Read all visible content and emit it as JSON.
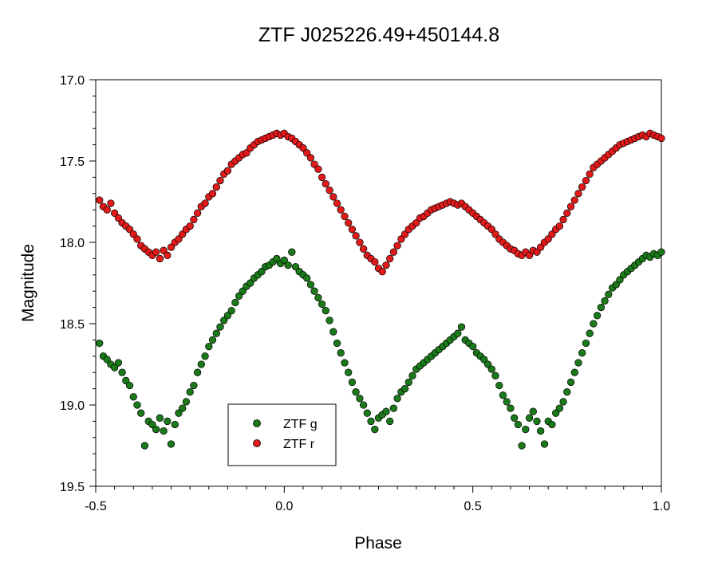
{
  "chart_data": {
    "type": "scatter",
    "title": "ZTF J025226.49+450144.8",
    "xlabel": "Phase",
    "ylabel": "Magnitude",
    "xlim": [
      -0.5,
      1.0
    ],
    "ylim": [
      17.0,
      19.5
    ],
    "y_inverted": true,
    "x_ticks": [
      "-0.5",
      "0.0",
      "0.5",
      "1.0"
    ],
    "y_ticks": [
      "17.0",
      "17.5",
      "18.0",
      "18.5",
      "19.0",
      "19.5"
    ],
    "grid": false,
    "legend_position": "bottom-left",
    "series": [
      {
        "name": "ZTF g",
        "color": "#1a7a1a",
        "points": [
          [
            -0.49,
            18.62
          ],
          [
            -0.48,
            18.7
          ],
          [
            -0.47,
            18.72
          ],
          [
            -0.46,
            18.75
          ],
          [
            -0.45,
            18.77
          ],
          [
            -0.44,
            18.74
          ],
          [
            -0.43,
            18.8
          ],
          [
            -0.42,
            18.85
          ],
          [
            -0.41,
            18.88
          ],
          [
            -0.4,
            18.95
          ],
          [
            -0.39,
            19.0
          ],
          [
            -0.38,
            19.05
          ],
          [
            -0.37,
            19.25
          ],
          [
            -0.36,
            19.1
          ],
          [
            -0.35,
            19.12
          ],
          [
            -0.34,
            19.15
          ],
          [
            -0.33,
            19.08
          ],
          [
            -0.32,
            19.16
          ],
          [
            -0.31,
            19.1
          ],
          [
            -0.3,
            19.24
          ],
          [
            -0.29,
            19.12
          ],
          [
            -0.28,
            19.05
          ],
          [
            -0.27,
            19.02
          ],
          [
            -0.26,
            18.98
          ],
          [
            -0.25,
            18.92
          ],
          [
            -0.24,
            18.88
          ],
          [
            -0.23,
            18.8
          ],
          [
            -0.22,
            18.75
          ],
          [
            -0.21,
            18.7
          ],
          [
            -0.2,
            18.64
          ],
          [
            -0.19,
            18.6
          ],
          [
            -0.18,
            18.56
          ],
          [
            -0.17,
            18.52
          ],
          [
            -0.16,
            18.48
          ],
          [
            -0.15,
            18.45
          ],
          [
            -0.14,
            18.42
          ],
          [
            -0.13,
            18.37
          ],
          [
            -0.12,
            18.33
          ],
          [
            -0.11,
            18.3
          ],
          [
            -0.1,
            18.27
          ],
          [
            -0.09,
            18.25
          ],
          [
            -0.08,
            18.22
          ],
          [
            -0.07,
            18.2
          ],
          [
            -0.06,
            18.18
          ],
          [
            -0.05,
            18.15
          ],
          [
            -0.04,
            18.14
          ],
          [
            -0.03,
            18.12
          ],
          [
            -0.02,
            18.1
          ],
          [
            -0.01,
            18.13
          ],
          [
            0.0,
            18.11
          ],
          [
            0.01,
            18.14
          ],
          [
            0.02,
            18.06
          ],
          [
            0.03,
            18.15
          ],
          [
            0.04,
            18.18
          ],
          [
            0.05,
            18.2
          ],
          [
            0.06,
            18.22
          ],
          [
            0.07,
            18.26
          ],
          [
            0.08,
            18.3
          ],
          [
            0.09,
            18.34
          ],
          [
            0.1,
            18.38
          ],
          [
            0.11,
            18.42
          ],
          [
            0.12,
            18.48
          ],
          [
            0.13,
            18.55
          ],
          [
            0.14,
            18.62
          ],
          [
            0.15,
            18.68
          ],
          [
            0.16,
            18.74
          ],
          [
            0.17,
            18.8
          ],
          [
            0.18,
            18.86
          ],
          [
            0.19,
            18.92
          ],
          [
            0.2,
            18.96
          ],
          [
            0.21,
            19.0
          ],
          [
            0.22,
            19.05
          ],
          [
            0.23,
            19.1
          ],
          [
            0.24,
            19.15
          ],
          [
            0.25,
            19.08
          ],
          [
            0.26,
            19.06
          ],
          [
            0.27,
            19.04
          ],
          [
            0.28,
            19.1
          ],
          [
            0.29,
            19.02
          ],
          [
            0.3,
            18.96
          ],
          [
            0.31,
            18.92
          ],
          [
            0.32,
            18.9
          ],
          [
            0.33,
            18.86
          ],
          [
            0.34,
            18.82
          ],
          [
            0.35,
            18.78
          ],
          [
            0.36,
            18.76
          ],
          [
            0.37,
            18.74
          ],
          [
            0.38,
            18.72
          ],
          [
            0.39,
            18.7
          ],
          [
            0.4,
            18.68
          ],
          [
            0.41,
            18.66
          ],
          [
            0.42,
            18.64
          ],
          [
            0.43,
            18.62
          ],
          [
            0.44,
            18.6
          ],
          [
            0.45,
            18.58
          ],
          [
            0.46,
            18.56
          ],
          [
            0.47,
            18.52
          ],
          [
            0.48,
            18.6
          ],
          [
            0.49,
            18.62
          ],
          [
            0.5,
            18.64
          ],
          [
            0.51,
            18.68
          ],
          [
            0.52,
            18.7
          ],
          [
            0.53,
            18.72
          ],
          [
            0.54,
            18.75
          ],
          [
            0.55,
            18.78
          ],
          [
            0.56,
            18.82
          ],
          [
            0.57,
            18.88
          ],
          [
            0.58,
            18.94
          ],
          [
            0.59,
            18.98
          ],
          [
            0.6,
            19.02
          ],
          [
            0.61,
            19.08
          ],
          [
            0.62,
            19.12
          ],
          [
            0.63,
            19.25
          ],
          [
            0.64,
            19.15
          ],
          [
            0.65,
            19.08
          ],
          [
            0.66,
            19.04
          ],
          [
            0.67,
            19.1
          ],
          [
            0.68,
            19.16
          ],
          [
            0.69,
            19.24
          ],
          [
            0.7,
            19.1
          ],
          [
            0.71,
            19.12
          ],
          [
            0.72,
            19.05
          ],
          [
            0.73,
            19.02
          ],
          [
            0.74,
            18.98
          ],
          [
            0.75,
            18.92
          ],
          [
            0.76,
            18.86
          ],
          [
            0.77,
            18.8
          ],
          [
            0.78,
            18.74
          ],
          [
            0.79,
            18.68
          ],
          [
            0.8,
            18.62
          ],
          [
            0.81,
            18.56
          ],
          [
            0.82,
            18.5
          ],
          [
            0.83,
            18.45
          ],
          [
            0.84,
            18.4
          ],
          [
            0.85,
            18.36
          ],
          [
            0.86,
            18.32
          ],
          [
            0.87,
            18.28
          ],
          [
            0.88,
            18.26
          ],
          [
            0.89,
            18.23
          ],
          [
            0.9,
            18.2
          ],
          [
            0.91,
            18.18
          ],
          [
            0.92,
            18.16
          ],
          [
            0.93,
            18.14
          ],
          [
            0.94,
            18.12
          ],
          [
            0.95,
            18.1
          ],
          [
            0.96,
            18.08
          ],
          [
            0.97,
            18.09
          ],
          [
            0.98,
            18.07
          ],
          [
            0.99,
            18.08
          ],
          [
            1.0,
            18.06
          ]
        ]
      },
      {
        "name": "ZTF r",
        "color": "#e31a1a",
        "points": [
          [
            -0.49,
            17.74
          ],
          [
            -0.48,
            17.78
          ],
          [
            -0.47,
            17.8
          ],
          [
            -0.46,
            17.76
          ],
          [
            -0.45,
            17.82
          ],
          [
            -0.44,
            17.85
          ],
          [
            -0.43,
            17.88
          ],
          [
            -0.42,
            17.9
          ],
          [
            -0.41,
            17.92
          ],
          [
            -0.4,
            17.95
          ],
          [
            -0.39,
            17.98
          ],
          [
            -0.38,
            18.02
          ],
          [
            -0.37,
            18.04
          ],
          [
            -0.36,
            18.06
          ],
          [
            -0.35,
            18.08
          ],
          [
            -0.34,
            18.06
          ],
          [
            -0.33,
            18.1
          ],
          [
            -0.32,
            18.05
          ],
          [
            -0.31,
            18.08
          ],
          [
            -0.3,
            18.03
          ],
          [
            -0.29,
            18.0
          ],
          [
            -0.28,
            17.98
          ],
          [
            -0.27,
            17.95
          ],
          [
            -0.26,
            17.92
          ],
          [
            -0.25,
            17.9
          ],
          [
            -0.24,
            17.86
          ],
          [
            -0.23,
            17.82
          ],
          [
            -0.22,
            17.78
          ],
          [
            -0.21,
            17.76
          ],
          [
            -0.2,
            17.72
          ],
          [
            -0.19,
            17.7
          ],
          [
            -0.18,
            17.66
          ],
          [
            -0.17,
            17.62
          ],
          [
            -0.16,
            17.58
          ],
          [
            -0.15,
            17.56
          ],
          [
            -0.14,
            17.52
          ],
          [
            -0.13,
            17.5
          ],
          [
            -0.12,
            17.48
          ],
          [
            -0.11,
            17.46
          ],
          [
            -0.1,
            17.45
          ],
          [
            -0.09,
            17.42
          ],
          [
            -0.08,
            17.4
          ],
          [
            -0.07,
            17.38
          ],
          [
            -0.06,
            17.37
          ],
          [
            -0.05,
            17.36
          ],
          [
            -0.04,
            17.35
          ],
          [
            -0.03,
            17.34
          ],
          [
            -0.02,
            17.33
          ],
          [
            -0.01,
            17.34
          ],
          [
            0.0,
            17.33
          ],
          [
            0.01,
            17.35
          ],
          [
            0.02,
            17.36
          ],
          [
            0.03,
            17.38
          ],
          [
            0.04,
            17.4
          ],
          [
            0.05,
            17.42
          ],
          [
            0.06,
            17.45
          ],
          [
            0.07,
            17.48
          ],
          [
            0.08,
            17.52
          ],
          [
            0.09,
            17.55
          ],
          [
            0.1,
            17.6
          ],
          [
            0.11,
            17.64
          ],
          [
            0.12,
            17.68
          ],
          [
            0.13,
            17.72
          ],
          [
            0.14,
            17.76
          ],
          [
            0.15,
            17.8
          ],
          [
            0.16,
            17.84
          ],
          [
            0.17,
            17.88
          ],
          [
            0.18,
            17.92
          ],
          [
            0.19,
            17.96
          ],
          [
            0.2,
            18.0
          ],
          [
            0.21,
            18.04
          ],
          [
            0.22,
            18.08
          ],
          [
            0.23,
            18.1
          ],
          [
            0.24,
            18.12
          ],
          [
            0.25,
            18.16
          ],
          [
            0.26,
            18.18
          ],
          [
            0.27,
            18.14
          ],
          [
            0.28,
            18.1
          ],
          [
            0.29,
            18.06
          ],
          [
            0.3,
            18.02
          ],
          [
            0.31,
            17.98
          ],
          [
            0.32,
            17.95
          ],
          [
            0.33,
            17.92
          ],
          [
            0.34,
            17.9
          ],
          [
            0.35,
            17.88
          ],
          [
            0.36,
            17.85
          ],
          [
            0.37,
            17.84
          ],
          [
            0.38,
            17.82
          ],
          [
            0.39,
            17.8
          ],
          [
            0.4,
            17.79
          ],
          [
            0.41,
            17.78
          ],
          [
            0.42,
            17.77
          ],
          [
            0.43,
            17.76
          ],
          [
            0.44,
            17.75
          ],
          [
            0.45,
            17.76
          ],
          [
            0.46,
            17.77
          ],
          [
            0.47,
            17.76
          ],
          [
            0.48,
            17.78
          ],
          [
            0.49,
            17.8
          ],
          [
            0.5,
            17.82
          ],
          [
            0.51,
            17.84
          ],
          [
            0.52,
            17.86
          ],
          [
            0.53,
            17.88
          ],
          [
            0.54,
            17.9
          ],
          [
            0.55,
            17.92
          ],
          [
            0.56,
            17.95
          ],
          [
            0.57,
            17.98
          ],
          [
            0.58,
            18.0
          ],
          [
            0.59,
            18.02
          ],
          [
            0.6,
            18.04
          ],
          [
            0.61,
            18.05
          ],
          [
            0.62,
            18.07
          ],
          [
            0.63,
            18.08
          ],
          [
            0.64,
            18.06
          ],
          [
            0.65,
            18.08
          ],
          [
            0.66,
            18.05
          ],
          [
            0.67,
            18.06
          ],
          [
            0.68,
            18.03
          ],
          [
            0.69,
            18.0
          ],
          [
            0.7,
            17.98
          ],
          [
            0.71,
            17.95
          ],
          [
            0.72,
            17.92
          ],
          [
            0.73,
            17.9
          ],
          [
            0.74,
            17.86
          ],
          [
            0.75,
            17.82
          ],
          [
            0.76,
            17.78
          ],
          [
            0.77,
            17.74
          ],
          [
            0.78,
            17.7
          ],
          [
            0.79,
            17.66
          ],
          [
            0.8,
            17.62
          ],
          [
            0.81,
            17.58
          ],
          [
            0.82,
            17.54
          ],
          [
            0.83,
            17.52
          ],
          [
            0.84,
            17.5
          ],
          [
            0.85,
            17.48
          ],
          [
            0.86,
            17.46
          ],
          [
            0.87,
            17.44
          ],
          [
            0.88,
            17.42
          ],
          [
            0.89,
            17.4
          ],
          [
            0.9,
            17.39
          ],
          [
            0.91,
            17.38
          ],
          [
            0.92,
            17.37
          ],
          [
            0.93,
            17.36
          ],
          [
            0.94,
            17.35
          ],
          [
            0.95,
            17.34
          ],
          [
            0.96,
            17.35
          ],
          [
            0.97,
            17.33
          ],
          [
            0.98,
            17.34
          ],
          [
            0.99,
            17.35
          ],
          [
            1.0,
            17.36
          ]
        ]
      }
    ]
  }
}
